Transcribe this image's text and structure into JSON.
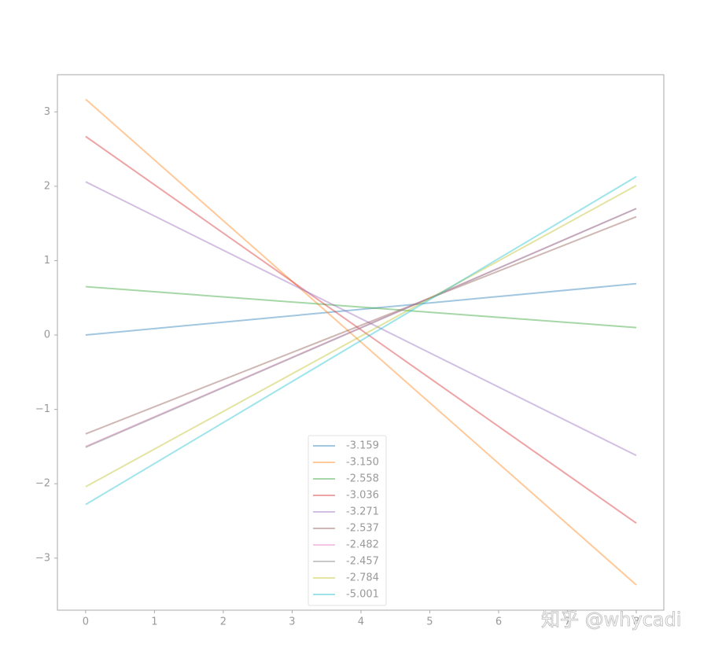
{
  "chart_data": {
    "type": "line",
    "x": [
      0,
      8
    ],
    "series": [
      {
        "name": "-3.159",
        "color": "#1f77b4",
        "values": [
          0.0,
          0.69
        ]
      },
      {
        "name": "-3.150",
        "color": "#ff7f0e",
        "values": [
          3.17,
          -3.36
        ]
      },
      {
        "name": "-2.558",
        "color": "#2ca02c",
        "values": [
          0.65,
          0.1
        ]
      },
      {
        "name": "-3.036",
        "color": "#d62728",
        "values": [
          2.67,
          -2.53
        ]
      },
      {
        "name": "-3.271",
        "color": "#9467bd",
        "values": [
          2.06,
          -1.62
        ]
      },
      {
        "name": "-2.537",
        "color": "#8c564b",
        "values": [
          -1.33,
          1.59
        ]
      },
      {
        "name": "-2.482",
        "color": "#e377c2",
        "values": [
          -1.5,
          1.7
        ]
      },
      {
        "name": "-2.457",
        "color": "#7f7f7f",
        "values": [
          -1.51,
          1.7
        ]
      },
      {
        "name": "-2.784",
        "color": "#bcbd22",
        "values": [
          -2.04,
          2.01
        ]
      },
      {
        "name": "-5.001",
        "color": "#17becf",
        "values": [
          -2.28,
          2.13
        ]
      }
    ],
    "xlim": [
      -0.41,
      8.4
    ],
    "ylim": [
      -3.7,
      3.5
    ],
    "xticks": [
      0,
      1,
      2,
      3,
      4,
      5,
      6,
      7,
      8
    ],
    "yticks": [
      {
        "value": -3,
        "label": "−3"
      },
      {
        "value": -2,
        "label": "−2"
      },
      {
        "value": -1,
        "label": "−1"
      },
      0,
      1,
      2,
      3
    ],
    "legend": "lower center",
    "watermark": "知乎 @whycadi"
  }
}
